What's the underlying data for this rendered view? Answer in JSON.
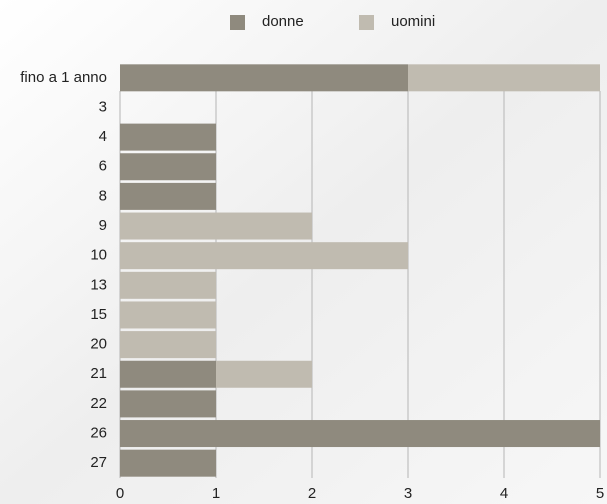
{
  "chart_data": {
    "type": "bar",
    "orientation": "horizontal",
    "stacked": true,
    "categories": [
      "fino a 1 anno",
      "3",
      "4",
      "6",
      "8",
      "9",
      "10",
      "13",
      "15",
      "20",
      "21",
      "22",
      "26",
      "27"
    ],
    "series": [
      {
        "name": "donne",
        "color": "#8f8a7e",
        "values": [
          3,
          0,
          1,
          1,
          1,
          0,
          0,
          0,
          0,
          0,
          1,
          1,
          5,
          1
        ]
      },
      {
        "name": "uomini",
        "color": "#c0bbb0",
        "values": [
          2,
          0,
          0,
          0,
          0,
          2,
          3,
          1,
          1,
          1,
          1,
          0,
          0,
          0
        ]
      }
    ],
    "xlim": [
      0,
      5
    ],
    "xticks": [
      0,
      1,
      2,
      3,
      4,
      5
    ],
    "grid": true,
    "legend": "top"
  }
}
